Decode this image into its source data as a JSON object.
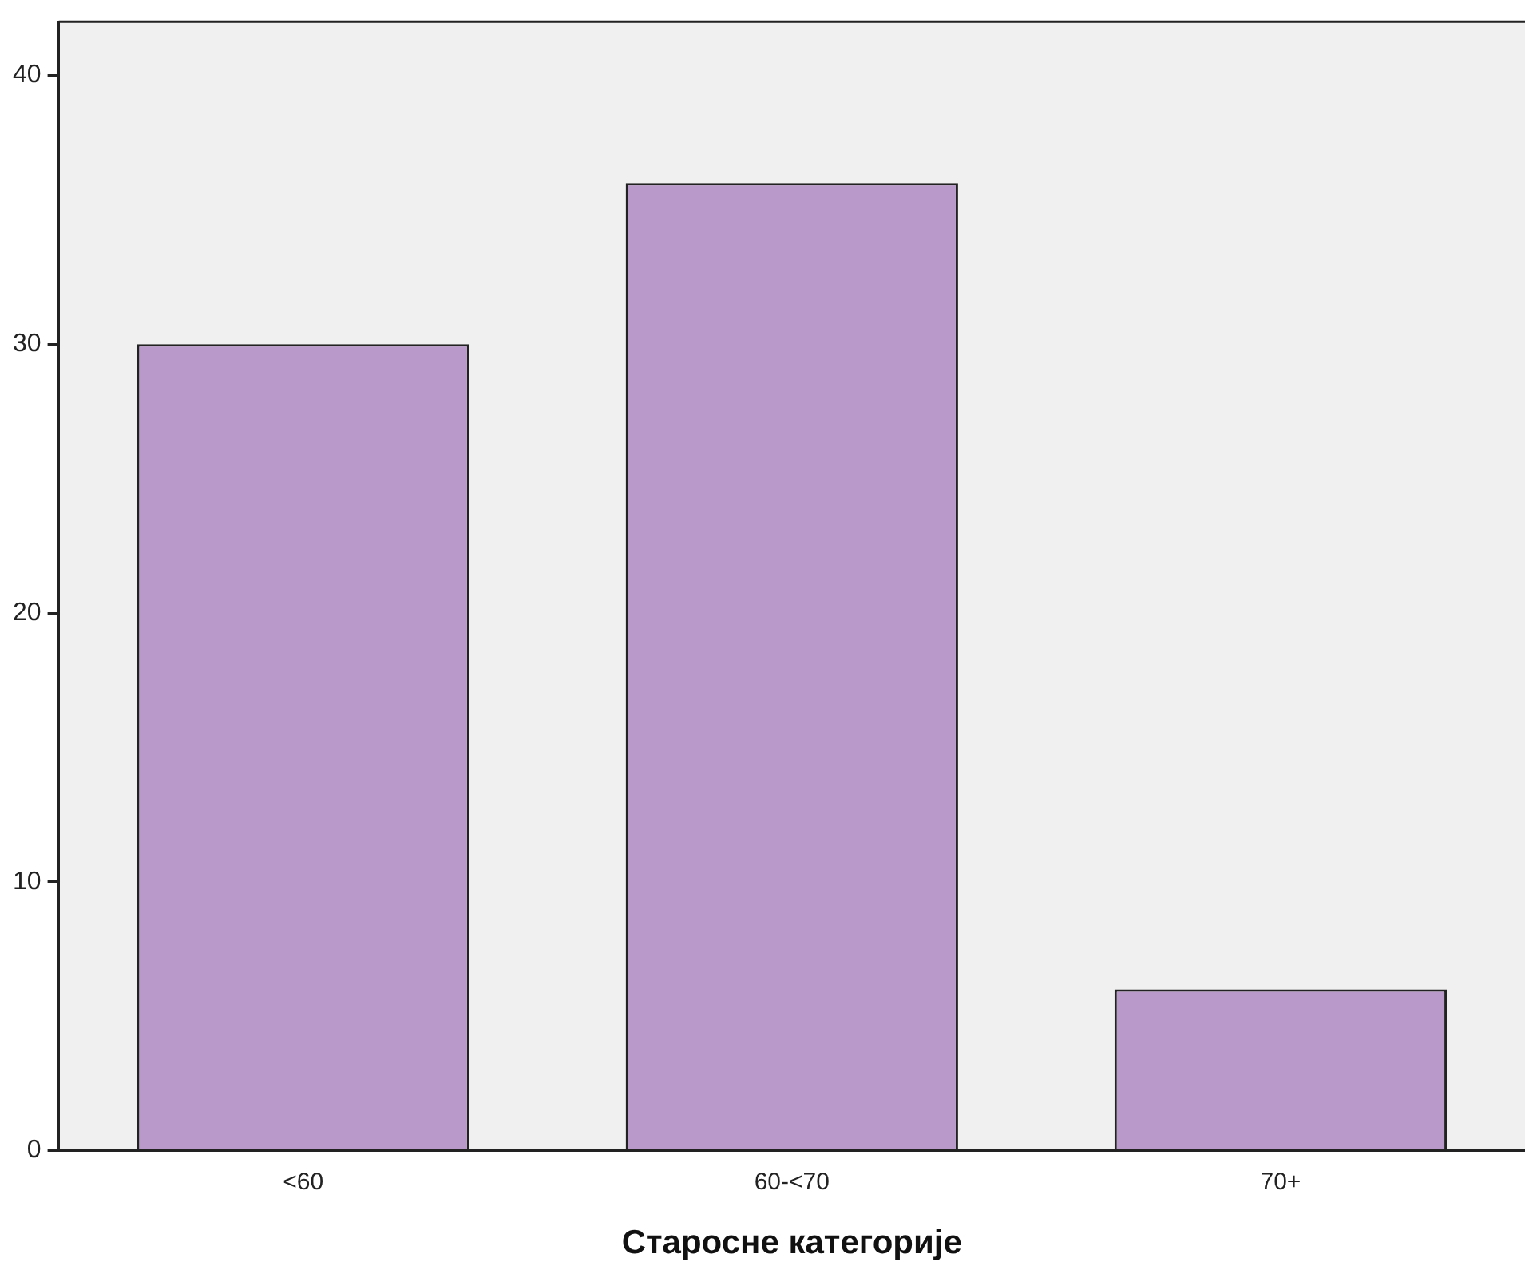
{
  "chart_data": {
    "type": "bar",
    "xlabel": "Старосне категорије",
    "categories": [
      "<60",
      "60-<70",
      "70+"
    ],
    "values": [
      30,
      36,
      6
    ],
    "color": "#b899c9",
    "ylim": [
      0,
      42
    ],
    "yticks": [
      0,
      10,
      20,
      30,
      40
    ],
    "grid": false,
    "legend": false
  }
}
